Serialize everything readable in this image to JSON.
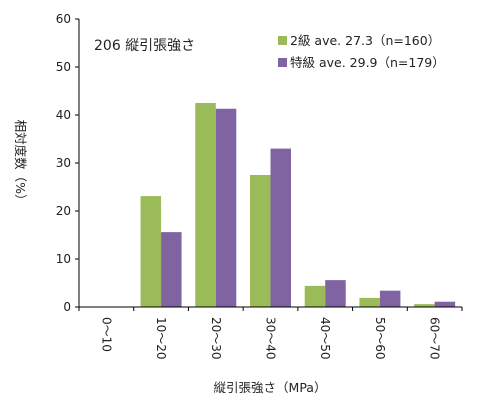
{
  "colors": {
    "series_1": "#9bbb59",
    "series_2": "#8064a2",
    "axis": "#000000"
  },
  "chart_data": {
    "type": "bar",
    "title": "206 縦引張強さ",
    "xlabel": "縦引張強さ（MPa）",
    "ylabel": "相対度数（%）",
    "ylim": [
      0,
      60
    ],
    "yticks": [
      0,
      10,
      20,
      30,
      40,
      50,
      60
    ],
    "categories": [
      "0～10",
      "10～20",
      "20～30",
      "30～40",
      "40～50",
      "50～60",
      "60～70"
    ],
    "legend_position": "top-right",
    "grid": false,
    "series": [
      {
        "name": "2級 ave. 27.3（n=160）",
        "values": [
          0,
          23.1,
          42.5,
          27.5,
          4.4,
          1.9,
          0.6
        ]
      },
      {
        "name": "特級 ave. 29.9（n=179）",
        "values": [
          0,
          15.6,
          41.3,
          33.0,
          5.6,
          3.4,
          1.1
        ]
      }
    ]
  }
}
